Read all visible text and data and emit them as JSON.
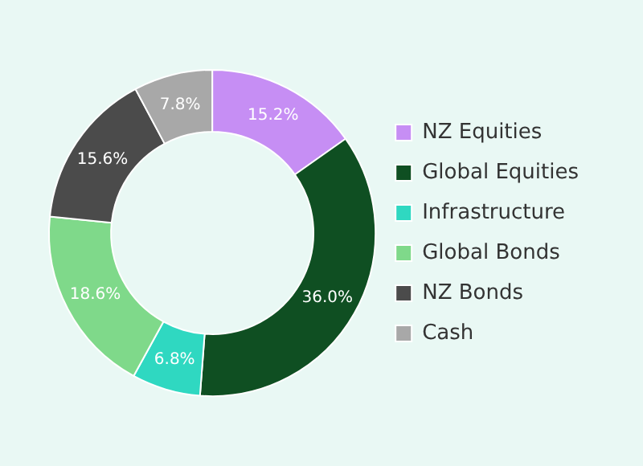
{
  "chart_data": {
    "type": "donut",
    "categories": [
      "NZ Equities",
      "Global Equities",
      "Infrastructure",
      "Global Bonds",
      "NZ Bonds",
      "Cash"
    ],
    "values": [
      15.2,
      36.0,
      6.8,
      18.6,
      15.6,
      7.8
    ],
    "colors": [
      "#c68ef4",
      "#0f4f22",
      "#2fd8c1",
      "#7fd98a",
      "#4b4b4b",
      "#a8a8a8"
    ],
    "value_labels": [
      "15.2%",
      "36.0%",
      "6.8%",
      "18.6%",
      "15.6%",
      "7.8%"
    ],
    "legend": "right"
  }
}
